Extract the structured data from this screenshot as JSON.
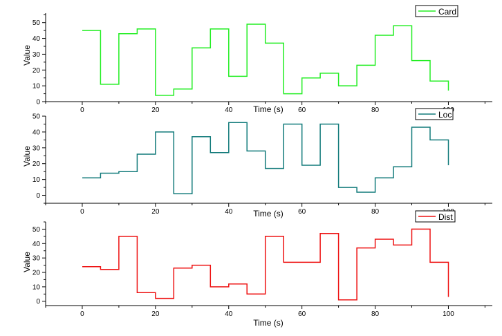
{
  "chart_data": [
    {
      "type": "line",
      "step": "post",
      "name": "card",
      "series": [
        {
          "name": "Card",
          "color": "#22ee22",
          "x": [
            0,
            5,
            10,
            15,
            20,
            25,
            30,
            35,
            40,
            45,
            50,
            55,
            60,
            65,
            70,
            75,
            80,
            85,
            90,
            95,
            100
          ],
          "values": [
            45,
            11,
            43,
            46,
            4,
            8,
            34,
            46,
            16,
            49,
            37,
            5,
            15,
            18,
            10,
            23,
            42,
            48,
            26,
            13,
            7
          ]
        }
      ],
      "xlabel": "Time (s)",
      "ylabel": "Value",
      "xlim": [
        -10,
        112
      ],
      "ylim": [
        0,
        56
      ],
      "xticks": [
        0,
        20,
        40,
        60,
        80,
        100
      ],
      "yticks": [
        0,
        10,
        20,
        30,
        40,
        50
      ],
      "legend": "top-right",
      "legend_label": "Card"
    },
    {
      "type": "line",
      "step": "post",
      "name": "loc",
      "series": [
        {
          "name": "Loc",
          "color": "#117a7a",
          "x": [
            0,
            5,
            10,
            15,
            20,
            25,
            30,
            35,
            40,
            45,
            50,
            55,
            60,
            65,
            70,
            75,
            80,
            85,
            90,
            95,
            100
          ],
          "values": [
            11,
            14,
            15,
            26,
            40,
            1,
            37,
            27,
            46,
            28,
            17,
            45,
            19,
            45,
            5,
            2,
            11,
            18,
            43,
            35,
            19
          ]
        }
      ],
      "xlabel": "Time (s)",
      "ylabel": "Value",
      "xlim": [
        -10,
        112
      ],
      "ylim": [
        -5,
        50
      ],
      "xticks": [
        0,
        20,
        40,
        60,
        80,
        100
      ],
      "yticks": [
        0,
        10,
        20,
        30,
        40,
        50
      ],
      "legend": "top-right",
      "legend_label": "Loc"
    },
    {
      "type": "line",
      "step": "post",
      "name": "dist",
      "series": [
        {
          "name": "Dist",
          "color": "#ee1111",
          "x": [
            0,
            5,
            10,
            15,
            20,
            25,
            30,
            35,
            40,
            45,
            50,
            55,
            60,
            65,
            70,
            75,
            80,
            85,
            90,
            95,
            100
          ],
          "values": [
            24,
            22,
            45,
            6,
            2,
            23,
            25,
            10,
            12,
            5,
            45,
            27,
            27,
            47,
            1,
            37,
            43,
            39,
            50,
            27,
            3
          ]
        }
      ],
      "xlabel": "Time (s)",
      "ylabel": "Value",
      "xlim": [
        -10,
        112
      ],
      "ylim": [
        -3,
        55
      ],
      "xticks": [
        0,
        20,
        40,
        60,
        80,
        100
      ],
      "yticks": [
        0,
        10,
        20,
        30,
        40,
        50
      ],
      "legend": "top-right",
      "legend_label": "Dist"
    }
  ]
}
